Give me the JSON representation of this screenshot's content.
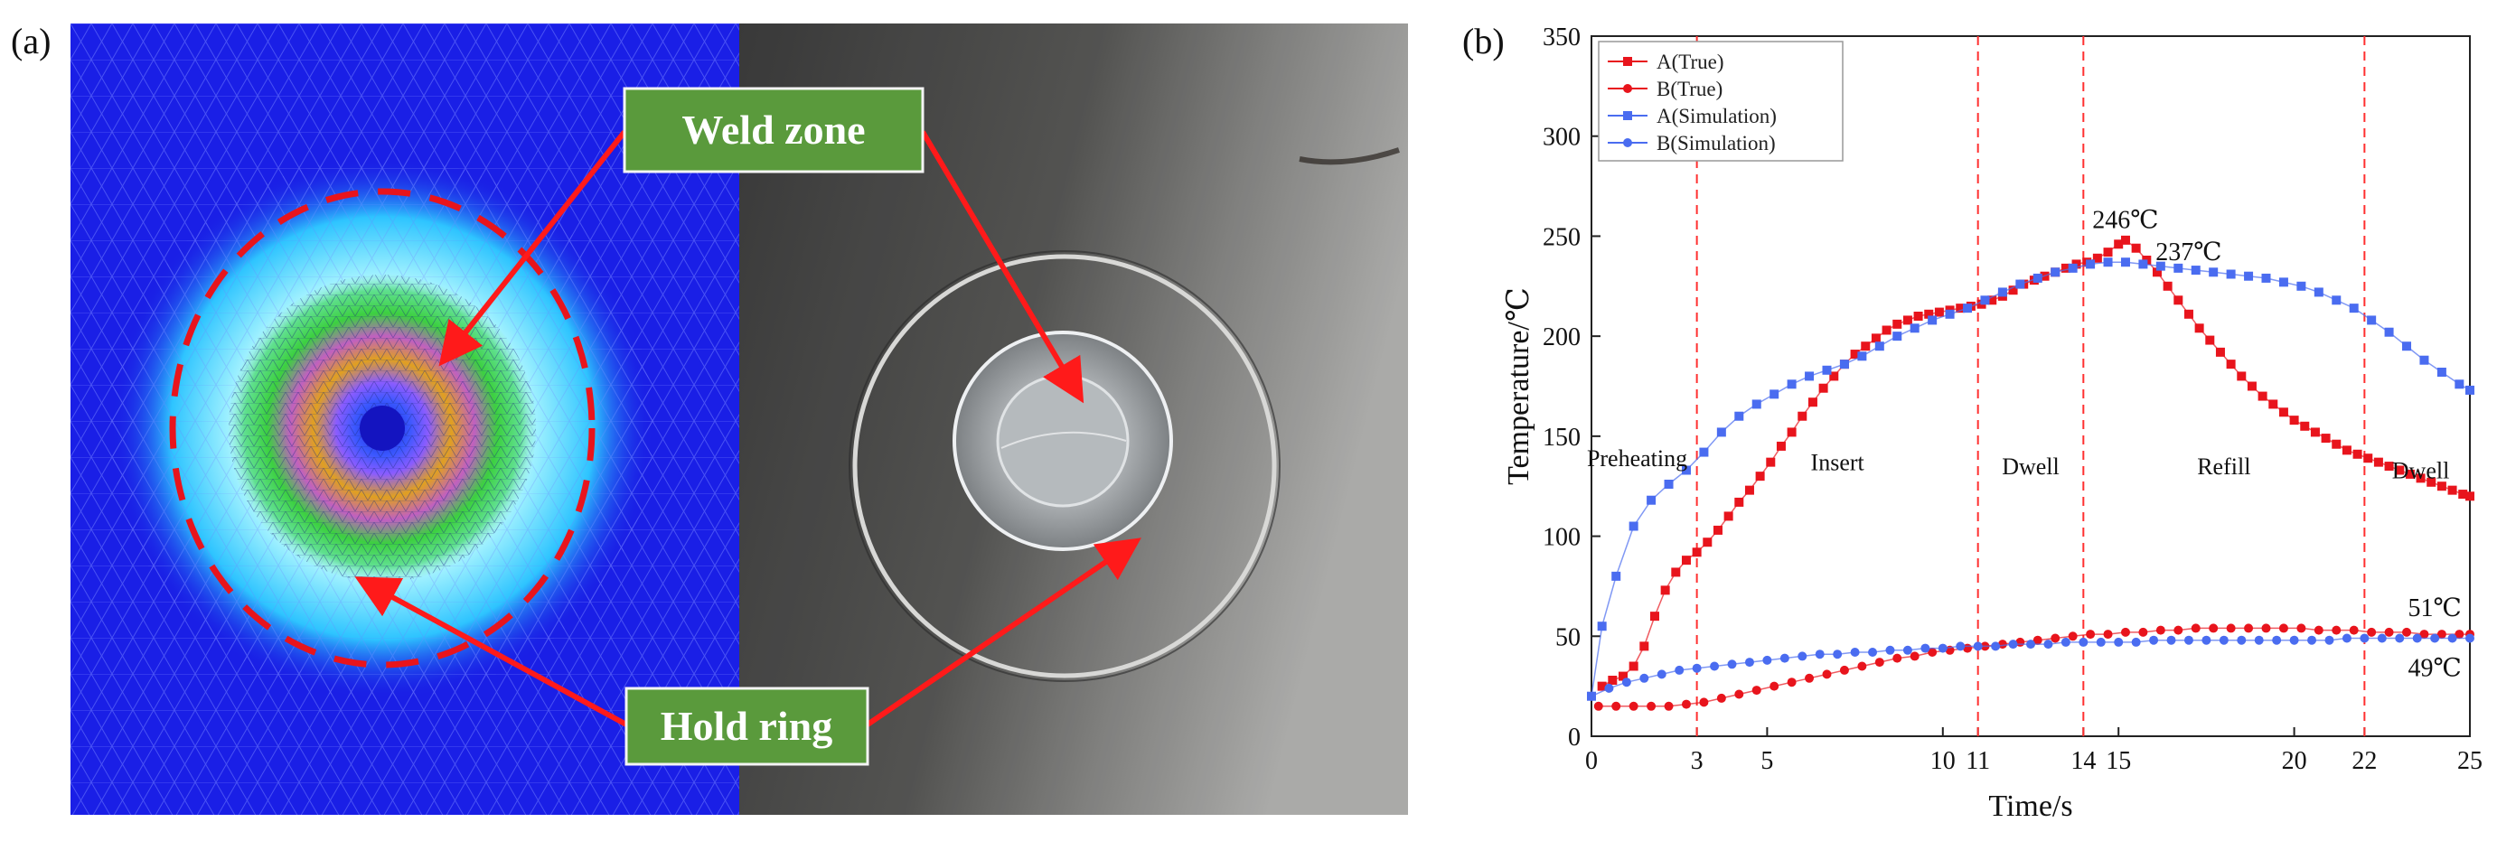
{
  "panel_a": {
    "label": "(a)",
    "callouts": {
      "weld_zone": "Weld zone",
      "hold_ring": "Hold ring"
    },
    "colors": {
      "mesh_bg": "#1a1fe6",
      "callout_bg": "#5a9a3c",
      "arrow": "#ff1a1a"
    }
  },
  "panel_b": {
    "label": "(b)"
  },
  "chart_data": {
    "type": "scatter",
    "title": "",
    "xlabel": "Time/s",
    "ylabel": "Temperature/℃",
    "xlim": [
      0,
      25
    ],
    "ylim": [
      0,
      350
    ],
    "x_ticks": [
      {
        "value": 0,
        "label": "0",
        "color": "#111111"
      },
      {
        "value": 3,
        "label": "3",
        "color": "#e01010"
      },
      {
        "value": 5,
        "label": "5",
        "color": "#111111"
      },
      {
        "value": 10,
        "label": "10",
        "color": "#111111"
      },
      {
        "value": 11,
        "label": "11",
        "color": "#e01010"
      },
      {
        "value": 14,
        "label": "14",
        "color": "#e01010"
      },
      {
        "value": 15,
        "label": "15",
        "color": "#111111"
      },
      {
        "value": 20,
        "label": "20",
        "color": "#111111"
      },
      {
        "value": 22,
        "label": "22",
        "color": "#e01010"
      },
      {
        "value": 25,
        "label": "25",
        "color": "#111111"
      }
    ],
    "y_ticks": [
      0,
      50,
      100,
      150,
      200,
      250,
      300,
      350
    ],
    "vlines": [
      3,
      11,
      14,
      22
    ],
    "vline_color": "#ff3030",
    "grid": false,
    "legend_position": "top-left",
    "stages": [
      {
        "label": "Preheating",
        "x": 1.3,
        "y": 135,
        "size": "small"
      },
      {
        "label": "Insert",
        "x": 7.0,
        "y": 133
      },
      {
        "label": "Dwell",
        "x": 12.5,
        "y": 131
      },
      {
        "label": "Refill",
        "x": 18.0,
        "y": 131
      },
      {
        "label": "Dwell",
        "x": 23.6,
        "y": 129
      }
    ],
    "annotations": [
      {
        "text": "246℃",
        "x": 15.2,
        "y": 254,
        "color": "#e01010"
      },
      {
        "text": "237℃",
        "x": 17.0,
        "y": 238,
        "color": "#2020e0"
      },
      {
        "text": "51℃",
        "x": 24.0,
        "y": 60,
        "color": "#e01010"
      },
      {
        "text": "49℃",
        "x": 24.0,
        "y": 30,
        "color": "#2020e0"
      }
    ],
    "series": [
      {
        "name": "A(True)",
        "color": "#e8141c",
        "marker": "square",
        "points": [
          [
            0.3,
            25
          ],
          [
            0.6,
            28
          ],
          [
            0.9,
            30
          ],
          [
            1.2,
            35
          ],
          [
            1.5,
            45
          ],
          [
            1.8,
            60
          ],
          [
            2.1,
            73
          ],
          [
            2.4,
            82
          ],
          [
            2.7,
            88
          ],
          [
            3.0,
            92
          ],
          [
            3.3,
            97
          ],
          [
            3.6,
            103
          ],
          [
            3.9,
            110
          ],
          [
            4.2,
            117
          ],
          [
            4.5,
            123
          ],
          [
            4.8,
            130
          ],
          [
            5.1,
            137
          ],
          [
            5.4,
            145
          ],
          [
            5.7,
            152
          ],
          [
            6.0,
            160
          ],
          [
            6.3,
            167
          ],
          [
            6.6,
            174
          ],
          [
            6.9,
            180
          ],
          [
            7.2,
            186
          ],
          [
            7.5,
            191
          ],
          [
            7.8,
            195
          ],
          [
            8.1,
            199
          ],
          [
            8.4,
            203
          ],
          [
            8.7,
            206
          ],
          [
            9.0,
            208
          ],
          [
            9.3,
            210
          ],
          [
            9.6,
            211
          ],
          [
            9.9,
            212
          ],
          [
            10.2,
            213
          ],
          [
            10.5,
            214
          ],
          [
            10.8,
            215
          ],
          [
            11.1,
            216
          ],
          [
            11.4,
            218
          ],
          [
            11.7,
            220
          ],
          [
            12.0,
            223
          ],
          [
            12.3,
            226
          ],
          [
            12.6,
            228
          ],
          [
            12.9,
            230
          ],
          [
            13.2,
            232
          ],
          [
            13.5,
            234
          ],
          [
            13.8,
            236
          ],
          [
            14.1,
            237
          ],
          [
            14.4,
            239
          ],
          [
            14.7,
            242
          ],
          [
            15.0,
            246
          ],
          [
            15.2,
            248
          ],
          [
            15.5,
            244
          ],
          [
            15.8,
            238
          ],
          [
            16.1,
            232
          ],
          [
            16.4,
            225
          ],
          [
            16.7,
            218
          ],
          [
            17.0,
            211
          ],
          [
            17.3,
            204
          ],
          [
            17.6,
            198
          ],
          [
            17.9,
            192
          ],
          [
            18.2,
            186
          ],
          [
            18.5,
            180
          ],
          [
            18.8,
            175
          ],
          [
            19.1,
            170
          ],
          [
            19.4,
            166
          ],
          [
            19.7,
            162
          ],
          [
            20.0,
            158
          ],
          [
            20.3,
            155
          ],
          [
            20.6,
            152
          ],
          [
            20.9,
            149
          ],
          [
            21.2,
            146
          ],
          [
            21.5,
            143
          ],
          [
            21.8,
            141
          ],
          [
            22.1,
            139
          ],
          [
            22.4,
            137
          ],
          [
            22.7,
            135
          ],
          [
            23.0,
            133
          ],
          [
            23.3,
            131
          ],
          [
            23.6,
            129
          ],
          [
            23.9,
            127
          ],
          [
            24.2,
            125
          ],
          [
            24.5,
            123
          ],
          [
            24.8,
            121
          ],
          [
            25.0,
            120
          ]
        ]
      },
      {
        "name": "B(True)",
        "color": "#e8141c",
        "marker": "circle",
        "points": [
          [
            0.2,
            15
          ],
          [
            0.7,
            15
          ],
          [
            1.2,
            15
          ],
          [
            1.7,
            15
          ],
          [
            2.2,
            15
          ],
          [
            2.7,
            16
          ],
          [
            3.2,
            17
          ],
          [
            3.7,
            19
          ],
          [
            4.2,
            21
          ],
          [
            4.7,
            23
          ],
          [
            5.2,
            25
          ],
          [
            5.7,
            27
          ],
          [
            6.2,
            29
          ],
          [
            6.7,
            31
          ],
          [
            7.2,
            33
          ],
          [
            7.7,
            35
          ],
          [
            8.2,
            37
          ],
          [
            8.7,
            39
          ],
          [
            9.2,
            40
          ],
          [
            9.7,
            42
          ],
          [
            10.2,
            43
          ],
          [
            10.7,
            44
          ],
          [
            11.2,
            45
          ],
          [
            11.7,
            46
          ],
          [
            12.2,
            47
          ],
          [
            12.7,
            48
          ],
          [
            13.2,
            49
          ],
          [
            13.7,
            50
          ],
          [
            14.2,
            51
          ],
          [
            14.7,
            51
          ],
          [
            15.2,
            52
          ],
          [
            15.7,
            52
          ],
          [
            16.2,
            53
          ],
          [
            16.7,
            53
          ],
          [
            17.2,
            54
          ],
          [
            17.7,
            54
          ],
          [
            18.2,
            54
          ],
          [
            18.7,
            54
          ],
          [
            19.2,
            54
          ],
          [
            19.7,
            54
          ],
          [
            20.2,
            54
          ],
          [
            20.7,
            53
          ],
          [
            21.2,
            53
          ],
          [
            21.7,
            53
          ],
          [
            22.2,
            52
          ],
          [
            22.7,
            52
          ],
          [
            23.2,
            52
          ],
          [
            23.7,
            51
          ],
          [
            24.2,
            51
          ],
          [
            24.7,
            51
          ],
          [
            25.0,
            51
          ]
        ]
      },
      {
        "name": "A(Simulation)",
        "color": "#4a6cf0",
        "marker": "square",
        "points": [
          [
            0,
            20
          ],
          [
            0.3,
            55
          ],
          [
            0.7,
            80
          ],
          [
            1.2,
            105
          ],
          [
            1.7,
            118
          ],
          [
            2.2,
            126
          ],
          [
            2.7,
            133
          ],
          [
            3.2,
            142
          ],
          [
            3.7,
            152
          ],
          [
            4.2,
            160
          ],
          [
            4.7,
            166
          ],
          [
            5.2,
            171
          ],
          [
            5.7,
            176
          ],
          [
            6.2,
            180
          ],
          [
            6.7,
            183
          ],
          [
            7.2,
            186
          ],
          [
            7.7,
            190
          ],
          [
            8.2,
            195
          ],
          [
            8.7,
            200
          ],
          [
            9.2,
            204
          ],
          [
            9.7,
            208
          ],
          [
            10.2,
            211
          ],
          [
            10.7,
            214
          ],
          [
            11.2,
            218
          ],
          [
            11.7,
            222
          ],
          [
            12.2,
            226
          ],
          [
            12.7,
            229
          ],
          [
            13.2,
            232
          ],
          [
            13.7,
            234
          ],
          [
            14.2,
            236
          ],
          [
            14.7,
            237
          ],
          [
            15.2,
            237
          ],
          [
            15.7,
            236
          ],
          [
            16.2,
            235
          ],
          [
            16.7,
            234
          ],
          [
            17.2,
            233
          ],
          [
            17.7,
            232
          ],
          [
            18.2,
            231
          ],
          [
            18.7,
            230
          ],
          [
            19.2,
            229
          ],
          [
            19.7,
            227
          ],
          [
            20.2,
            225
          ],
          [
            20.7,
            222
          ],
          [
            21.2,
            218
          ],
          [
            21.7,
            214
          ],
          [
            22.2,
            208
          ],
          [
            22.7,
            202
          ],
          [
            23.2,
            195
          ],
          [
            23.7,
            188
          ],
          [
            24.2,
            182
          ],
          [
            24.7,
            176
          ],
          [
            25.0,
            173
          ]
        ]
      },
      {
        "name": "B(Simulation)",
        "color": "#4a6cf0",
        "marker": "circle",
        "points": [
          [
            0,
            20
          ],
          [
            0.5,
            24
          ],
          [
            1.0,
            27
          ],
          [
            1.5,
            29
          ],
          [
            2.0,
            31
          ],
          [
            2.5,
            33
          ],
          [
            3.0,
            34
          ],
          [
            3.5,
            35
          ],
          [
            4.0,
            36
          ],
          [
            4.5,
            37
          ],
          [
            5.0,
            38
          ],
          [
            5.5,
            39
          ],
          [
            6.0,
            40
          ],
          [
            6.5,
            41
          ],
          [
            7.0,
            41
          ],
          [
            7.5,
            42
          ],
          [
            8.0,
            42
          ],
          [
            8.5,
            43
          ],
          [
            9.0,
            43
          ],
          [
            9.5,
            44
          ],
          [
            10.0,
            44
          ],
          [
            10.5,
            45
          ],
          [
            11.0,
            45
          ],
          [
            11.5,
            45
          ],
          [
            12.0,
            46
          ],
          [
            12.5,
            46
          ],
          [
            13.0,
            46
          ],
          [
            13.5,
            47
          ],
          [
            14.0,
            47
          ],
          [
            14.5,
            47
          ],
          [
            15.0,
            47
          ],
          [
            15.5,
            47
          ],
          [
            16.0,
            48
          ],
          [
            16.5,
            48
          ],
          [
            17.0,
            48
          ],
          [
            17.5,
            48
          ],
          [
            18.0,
            48
          ],
          [
            18.5,
            48
          ],
          [
            19.0,
            48
          ],
          [
            19.5,
            48
          ],
          [
            20.0,
            48
          ],
          [
            20.5,
            48
          ],
          [
            21.0,
            48
          ],
          [
            21.5,
            49
          ],
          [
            22.0,
            49
          ],
          [
            22.5,
            49
          ],
          [
            23.0,
            49
          ],
          [
            23.5,
            49
          ],
          [
            24.0,
            49
          ],
          [
            24.5,
            49
          ],
          [
            25.0,
            49
          ]
        ]
      }
    ]
  }
}
